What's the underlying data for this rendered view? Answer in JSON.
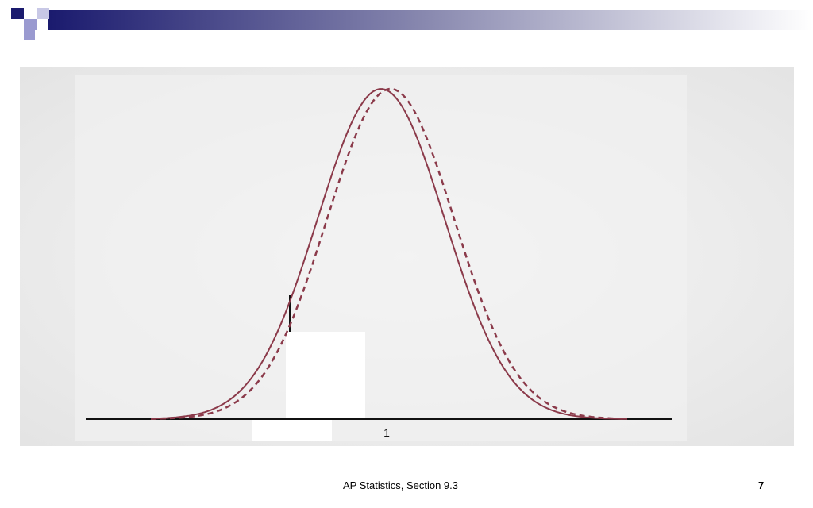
{
  "figure": {
    "axis_label": "1"
  },
  "footer": {
    "text": "AP Statistics, Section 9.3",
    "page_number": "7"
  }
}
